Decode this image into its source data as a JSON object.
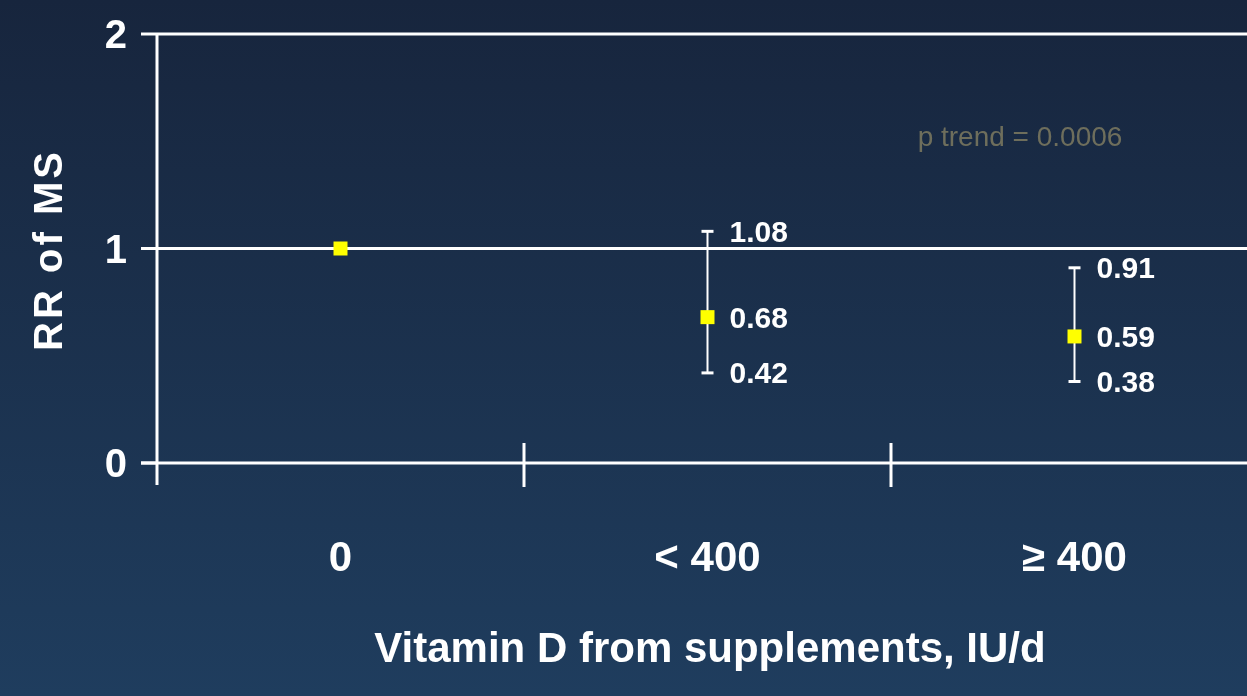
{
  "chart_data": {
    "type": "scatter",
    "xlabel": "Vitamin D from supplements, IU/d",
    "ylabel": "RR of MS",
    "categories": [
      "0",
      "< 400",
      "≥ 400"
    ],
    "series": [
      {
        "color": "#ffff00",
        "values": [
          1,
          0.68,
          0.59
        ],
        "errors": [
          null,
          [
            0.42,
            1.08
          ],
          [
            0.38,
            0.91
          ]
        ],
        "value_labels": [
          null,
          "0.68",
          "0.59"
        ]
      }
    ],
    "ylim": [
      0,
      2
    ],
    "yticks": [
      0,
      1,
      2
    ],
    "grid": "y",
    "marker": "square",
    "annotations": [
      "p trend = 0.0006",
      {
        "text": "1.08",
        "x": "< 400",
        "y": 1.08
      },
      {
        "text": "0.42",
        "x": "< 400",
        "y": 0.42
      },
      {
        "text": "0.91",
        "x": "≥ 400",
        "y": 0.91
      },
      {
        "text": "0.38",
        "x": "≥ 400",
        "y": 0.38
      }
    ]
  }
}
